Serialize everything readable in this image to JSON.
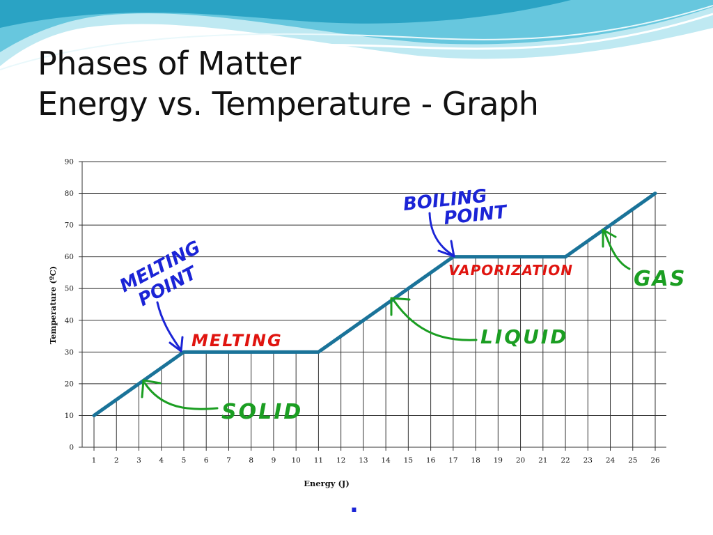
{
  "slide": {
    "title_line1": "Phases of Matter",
    "title_line2": "Energy vs. Temperature - Graph",
    "footer_dot": "."
  },
  "colors": {
    "curve": "#1a7399",
    "gridline": "#333333",
    "blue_ink": "#1b24d6",
    "red_ink": "#e0140f",
    "green_ink": "#1b9e22"
  },
  "chart_data": {
    "type": "line",
    "xlabel": "Energy (J)",
    "ylabel": "Temperature (ºC)",
    "categories": [
      "1",
      "2",
      "3",
      "4",
      "5",
      "6",
      "7",
      "8",
      "9",
      "10",
      "11",
      "12",
      "13",
      "14",
      "15",
      "16",
      "17",
      "18",
      "19",
      "20",
      "21",
      "22",
      "23",
      "24",
      "25",
      "26"
    ],
    "series": [
      {
        "values": [
          10,
          15,
          20,
          25,
          30,
          30,
          30,
          30,
          30,
          30,
          30,
          35,
          40,
          45,
          50,
          55,
          60,
          60,
          60,
          60,
          60,
          60,
          65,
          70,
          75,
          80
        ]
      }
    ],
    "ylim": [
      0,
      90
    ],
    "yticks": [
      0,
      10,
      20,
      30,
      40,
      50,
      60,
      70,
      80,
      90
    ],
    "grid": "horizontal and vertical drop lines",
    "legend": "none",
    "annotations": [
      {
        "text": "MELTING POINT",
        "color": "blue",
        "arrow_to": {
          "x": 5,
          "y": 30
        }
      },
      {
        "text": "MELTING",
        "color": "red",
        "at": {
          "x": 5,
          "y": 30
        }
      },
      {
        "text": "SOLID",
        "color": "green",
        "arrow_to": {
          "x": 3,
          "y": 20
        }
      },
      {
        "text": "BOILING POINT",
        "color": "blue",
        "arrow_to": {
          "x": 17,
          "y": 60
        }
      },
      {
        "text": "VAPORIZATION",
        "color": "red",
        "at": {
          "x": 17,
          "y": 60
        }
      },
      {
        "text": "LIQUID",
        "color": "green",
        "arrow_to": {
          "x": 14,
          "y": 45
        }
      },
      {
        "text": "GAS",
        "color": "green",
        "arrow_to": {
          "x": 24,
          "y": 70
        }
      }
    ]
  }
}
